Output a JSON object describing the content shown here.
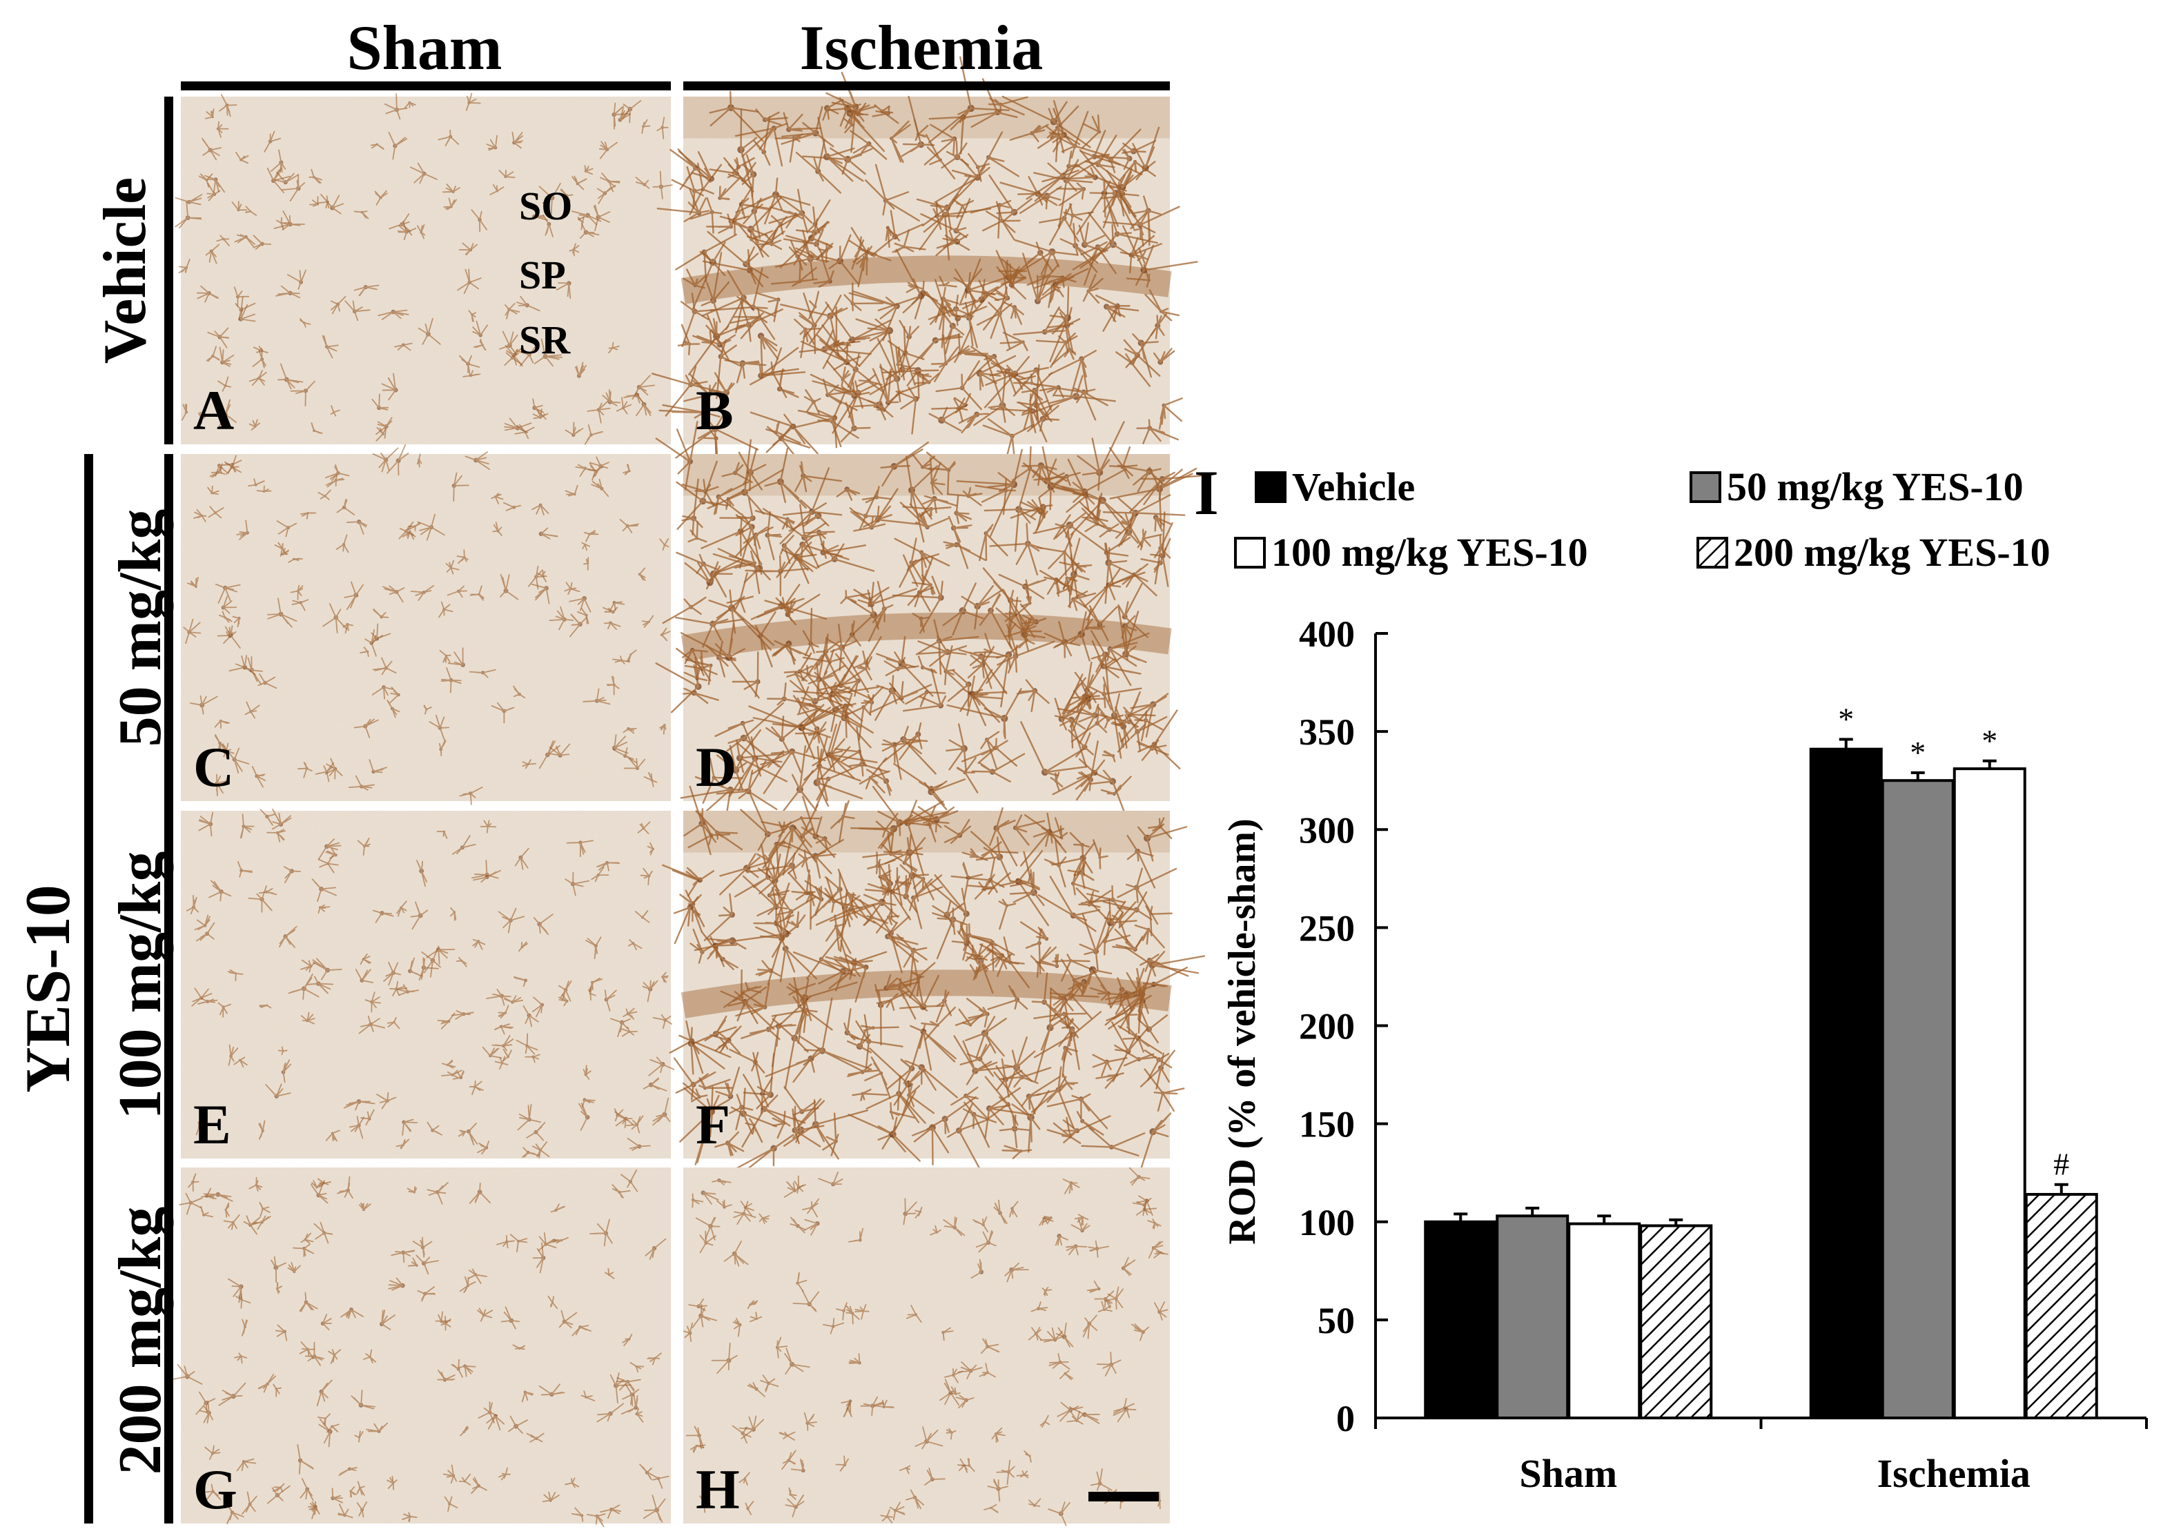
{
  "figure": {
    "column_headers": [
      "Sham",
      "Ischemia"
    ],
    "row_labels": [
      "Vehicle",
      "50 mg/kg",
      "100 mg/kg",
      "200 mg/kg"
    ],
    "group_label": "YES-10",
    "panel_letters": [
      "A",
      "B",
      "C",
      "D",
      "E",
      "F",
      "G",
      "H"
    ],
    "layer_labels": [
      "SO",
      "SP",
      "SR"
    ],
    "colors": {
      "tissue_background": "#ece3d8",
      "stain_brown": "#a0622e",
      "stain_dark": "#7a4320",
      "line": "#000000"
    }
  },
  "chart_data": {
    "type": "bar",
    "panel_label": "I",
    "categories": [
      "Sham",
      "Ischemia"
    ],
    "ylabel": "ROD (% of vehicle-sham)",
    "xlabel": "",
    "ylim": [
      0,
      400
    ],
    "yticks": [
      0,
      50,
      100,
      150,
      200,
      250,
      300,
      350,
      400
    ],
    "legend_position": "top",
    "series": [
      {
        "name": "Vehicle",
        "fill": "#000000",
        "pattern": "solid",
        "values": [
          100,
          341
        ],
        "errors": [
          4,
          5
        ],
        "marks": [
          "",
          "*"
        ]
      },
      {
        "name": "50 mg/kg YES-10",
        "fill": "#808080",
        "pattern": "solid",
        "values": [
          103,
          325
        ],
        "errors": [
          4,
          4
        ],
        "marks": [
          "",
          "*"
        ]
      },
      {
        "name": "100 mg/kg YES-10",
        "fill": "#ffffff",
        "pattern": "solid",
        "values": [
          99,
          331
        ],
        "errors": [
          4,
          4
        ],
        "marks": [
          "",
          "*"
        ]
      },
      {
        "name": "200 mg/kg YES-10",
        "fill": "#ffffff",
        "pattern": "hatch",
        "values": [
          98,
          114
        ],
        "errors": [
          3,
          5
        ],
        "marks": [
          "",
          "#"
        ]
      }
    ]
  }
}
